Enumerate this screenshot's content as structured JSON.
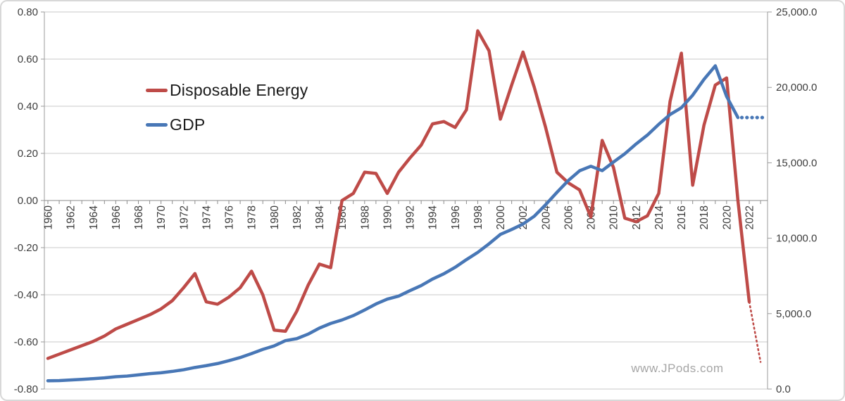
{
  "watermark": "www.JPods.com",
  "chart_data": {
    "type": "line",
    "title": "",
    "grid": true,
    "legend_position": "inside-top-left",
    "x_start_year": 1960,
    "x_tick_labels": [
      "1960",
      "1962",
      "1964",
      "1966",
      "1968",
      "1970",
      "1972",
      "1974",
      "1976",
      "1978",
      "1980",
      "1982",
      "1984",
      "1986",
      "1988",
      "1990",
      "1992",
      "1994",
      "1996",
      "1998",
      "2000",
      "2002",
      "2004",
      "2006",
      "2008",
      "2010",
      "2012",
      "2014",
      "2016",
      "2018",
      "2020",
      "2022"
    ],
    "left_axis": {
      "range": [
        -0.8,
        0.8
      ],
      "tick_values": [
        0.8,
        0.6,
        0.4,
        0.2,
        0.0,
        -0.2,
        -0.4,
        -0.6,
        -0.8
      ],
      "tick_labels": [
        "0.80",
        "0.60",
        "0.40",
        "0.20",
        "0.00",
        "-0.20",
        "-0.40",
        "-0.60",
        "-0.80"
      ]
    },
    "right_axis": {
      "range": [
        0,
        25000
      ],
      "tick_values": [
        25000,
        20000,
        15000,
        10000,
        5000,
        0
      ],
      "tick_labels": [
        "25,000.0",
        "20,000.0",
        "15,000.0",
        "10,000.0",
        "5,000.0",
        "0.0"
      ]
    },
    "series": [
      {
        "name": "Disposable Energy",
        "color": "#be4b48",
        "axis": "left",
        "start_year": 1960,
        "values": [
          -0.67,
          -0.652,
          -0.634,
          -0.616,
          -0.598,
          -0.575,
          -0.545,
          -0.525,
          -0.505,
          -0.485,
          -0.46,
          -0.425,
          -0.37,
          -0.31,
          -0.43,
          -0.44,
          -0.41,
          -0.37,
          -0.3,
          -0.4,
          -0.55,
          -0.555,
          -0.47,
          -0.36,
          -0.27,
          -0.285,
          0.0,
          0.03,
          0.12,
          0.115,
          0.03,
          0.12,
          0.18,
          0.235,
          0.325,
          0.335,
          0.31,
          0.385,
          0.72,
          0.635,
          0.345,
          0.49,
          0.63,
          0.48,
          0.31,
          0.12,
          0.075,
          0.045,
          -0.07,
          0.255,
          0.14,
          -0.075,
          -0.09,
          -0.065,
          0.03,
          0.42,
          0.625,
          0.065,
          0.32,
          0.49,
          0.52,
          0.0,
          -0.43
        ],
        "projection": {
          "style": "dotted",
          "years": [
            2022,
            2023
          ],
          "values": [
            -0.43,
            -0.685
          ]
        }
      },
      {
        "name": "GDP",
        "color": "#4877b6",
        "axis": "right",
        "start_year": 1960,
        "values": [
          550,
          560,
          600,
          640,
          690,
          740,
          815,
          860,
          940,
          1020,
          1080,
          1170,
          1280,
          1430,
          1550,
          1690,
          1880,
          2090,
          2350,
          2630,
          2860,
          3210,
          3340,
          3640,
          4040,
          4350,
          4580,
          4870,
          5240,
          5640,
          5960,
          6160,
          6520,
          6860,
          7290,
          7640,
          8070,
          8580,
          9060,
          9630,
          10250,
          10580,
          10940,
          11460,
          12220,
          13040,
          13820,
          14470,
          14770,
          14480,
          15050,
          15600,
          16250,
          16840,
          17550,
          18200,
          18650,
          19480,
          20530,
          21430,
          19400,
          18000
        ],
        "projection": {
          "style": "dots",
          "years": [
            2021.35,
            2021.8,
            2022.25,
            2022.7,
            2023.15
          ],
          "values": [
            18000,
            18000,
            18000,
            18000,
            18000
          ]
        }
      }
    ]
  }
}
